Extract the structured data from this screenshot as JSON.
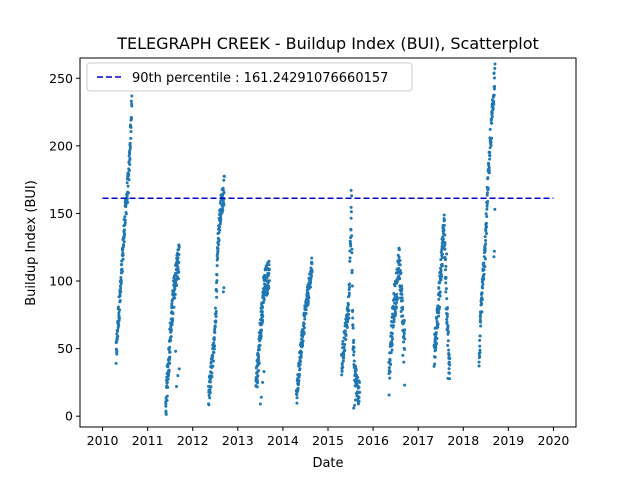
{
  "chart_data": {
    "type": "scatter",
    "title": "TELEGRAPH CREEK - Buildup Index (BUI), Scatterplot",
    "xlabel": "Date",
    "ylabel": "Buildup Index (BUI)",
    "xlim": [
      2009.5,
      2020.5
    ],
    "ylim": [
      -8,
      265
    ],
    "x_ticks": [
      2010,
      2011,
      2012,
      2013,
      2014,
      2015,
      2016,
      2017,
      2018,
      2019,
      2020
    ],
    "y_ticks": [
      0,
      50,
      100,
      150,
      200,
      250
    ],
    "point_color": "#1f77b4",
    "reference_line": {
      "label": "90th percentile : 161.24291076660157",
      "value": 161.24291076660157,
      "color": "#0000cc",
      "x_range": [
        2010,
        2020
      ],
      "style": "dashed"
    },
    "legend": {
      "location": "upper-left"
    },
    "seasons": [
      {
        "year": 2010,
        "start": 2010.3,
        "end": 2010.65,
        "keyframes": [
          [
            0,
            43
          ],
          [
            0.12,
            70
          ],
          [
            0.3,
            95
          ],
          [
            0.5,
            135
          ],
          [
            0.65,
            160
          ],
          [
            0.8,
            175
          ],
          [
            0.92,
            210
          ],
          [
            1.0,
            230
          ]
        ],
        "jitter": 10
      },
      {
        "year": 2011,
        "start": 2011.4,
        "end": 2011.7,
        "keyframes": [
          [
            0,
            5
          ],
          [
            0.15,
            30
          ],
          [
            0.35,
            60
          ],
          [
            0.55,
            85
          ],
          [
            0.7,
            100
          ],
          [
            0.85,
            110
          ],
          [
            1.0,
            116
          ]
        ],
        "jitter": 12,
        "extras": [
          [
            2011.64,
            22
          ],
          [
            2011.67,
            30
          ],
          [
            2011.7,
            35
          ],
          [
            2011.62,
            48
          ]
        ]
      },
      {
        "year": 2012,
        "start": 2012.35,
        "end": 2012.7,
        "keyframes": [
          [
            0,
            12
          ],
          [
            0.15,
            30
          ],
          [
            0.3,
            45
          ],
          [
            0.45,
            75
          ],
          [
            0.6,
            130
          ],
          [
            0.8,
            155
          ],
          [
            1.0,
            168
          ]
        ],
        "jitter": 10,
        "extras": [
          [
            2012.68,
            92
          ],
          [
            2012.69,
            95
          ]
        ]
      },
      {
        "year": 2013,
        "start": 2013.4,
        "end": 2013.7,
        "keyframes": [
          [
            0,
            20
          ],
          [
            0.2,
            45
          ],
          [
            0.4,
            70
          ],
          [
            0.55,
            90
          ],
          [
            0.7,
            98
          ],
          [
            0.85,
            102
          ],
          [
            1.0,
            106
          ]
        ],
        "jitter": 12,
        "extras": [
          [
            2013.5,
            9
          ],
          [
            2013.52,
            14
          ],
          [
            2013.55,
            25
          ],
          [
            2013.58,
            33
          ]
        ]
      },
      {
        "year": 2014,
        "start": 2014.3,
        "end": 2014.65,
        "keyframes": [
          [
            0,
            12
          ],
          [
            0.2,
            40
          ],
          [
            0.4,
            60
          ],
          [
            0.6,
            80
          ],
          [
            0.8,
            95
          ],
          [
            1.0,
            112
          ]
        ],
        "jitter": 8
      },
      {
        "year": 2015,
        "start": 2015.3,
        "end": 2015.7,
        "keyframes": [
          [
            0,
            35
          ],
          [
            0.15,
            55
          ],
          [
            0.3,
            70
          ],
          [
            0.4,
            80
          ],
          [
            0.5,
            130
          ],
          [
            0.55,
            163
          ],
          [
            0.62,
            60
          ],
          [
            0.75,
            30
          ],
          [
            1.0,
            15
          ]
        ],
        "jitter": 10,
        "extras": [
          [
            2015.57,
            6
          ],
          [
            2015.59,
            8
          ],
          [
            2015.61,
            12
          ],
          [
            2015.62,
            35
          ]
        ]
      },
      {
        "year": 2016,
        "start": 2016.35,
        "end": 2016.7,
        "keyframes": [
          [
            0,
            28
          ],
          [
            0.15,
            55
          ],
          [
            0.3,
            80
          ],
          [
            0.5,
            95
          ],
          [
            0.65,
            118
          ],
          [
            0.8,
            85
          ],
          [
            1.0,
            60
          ]
        ],
        "jitter": 14,
        "extras": [
          [
            2016.7,
            23
          ],
          [
            2016.68,
            40
          ],
          [
            2016.66,
            45
          ]
        ]
      },
      {
        "year": 2017,
        "start": 2017.35,
        "end": 2017.7,
        "keyframes": [
          [
            0,
            45
          ],
          [
            0.2,
            70
          ],
          [
            0.4,
            100
          ],
          [
            0.55,
            125
          ],
          [
            0.65,
            140
          ],
          [
            0.8,
            80
          ],
          [
            1.0,
            35
          ]
        ],
        "jitter": 12,
        "extras": [
          [
            2017.66,
            28
          ],
          [
            2017.68,
            32
          ],
          [
            2017.69,
            40
          ],
          [
            2017.63,
            120
          ]
        ]
      },
      {
        "year": 2018,
        "start": 2018.35,
        "end": 2018.7,
        "keyframes": [
          [
            0,
            40
          ],
          [
            0.12,
            75
          ],
          [
            0.25,
            100
          ],
          [
            0.4,
            125
          ],
          [
            0.55,
            170
          ],
          [
            0.7,
            200
          ],
          [
            0.85,
            225
          ],
          [
            1.0,
            253
          ]
        ],
        "jitter": 10,
        "extras": [
          [
            2018.68,
            118
          ],
          [
            2018.69,
            122
          ],
          [
            2018.7,
            153
          ]
        ]
      }
    ]
  }
}
